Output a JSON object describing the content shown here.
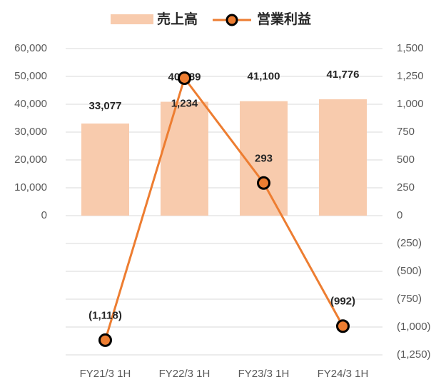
{
  "chart_data": {
    "type": "bar_line",
    "categories": [
      "FY21/3 1H",
      "FY22/3 1H",
      "FY23/3 1H",
      "FY24/3 1H"
    ],
    "series": [
      {
        "name": "売上高",
        "type": "bar",
        "color": "#f8cbad",
        "axis": "y",
        "values": [
          33077,
          40889,
          41100,
          41776
        ],
        "value_labels": [
          "33,077",
          "40,889",
          "41,100",
          "41,776"
        ]
      },
      {
        "name": "営業利益",
        "type": "line",
        "color": "#ed7d31",
        "axis": "y2",
        "values": [
          -1118,
          1234,
          293,
          -992
        ],
        "value_labels": [
          "(1,118)",
          "1,234",
          "293",
          "(992)"
        ]
      }
    ],
    "ylim": [
      -50000,
      60000
    ],
    "yticks": [
      0,
      {
        "value": 10000,
        "label": "10,000"
      },
      {
        "value": 20000,
        "label": "20,000"
      },
      {
        "value": 30000,
        "label": "30,000"
      },
      {
        "value": 40000,
        "label": "40,000"
      },
      {
        "value": 50000,
        "label": "50,000"
      },
      {
        "value": 60000,
        "label": "60,000"
      }
    ],
    "y2lim": [
      -1250,
      1500
    ],
    "y2ticks": [
      {
        "value": -1250,
        "label": "(1,250)"
      },
      {
        "value": -1000,
        "label": "(1,000)"
      },
      {
        "value": -750,
        "label": "(750)"
      },
      {
        "value": -500,
        "label": "(500)"
      },
      {
        "value": -250,
        "label": "(250)"
      },
      0,
      250,
      500,
      750,
      {
        "value": 1000,
        "label": "1,000"
      },
      {
        "value": 1250,
        "label": "1,250"
      },
      {
        "value": 1500,
        "label": "1,500"
      }
    ],
    "grid": true,
    "legend": "top"
  }
}
